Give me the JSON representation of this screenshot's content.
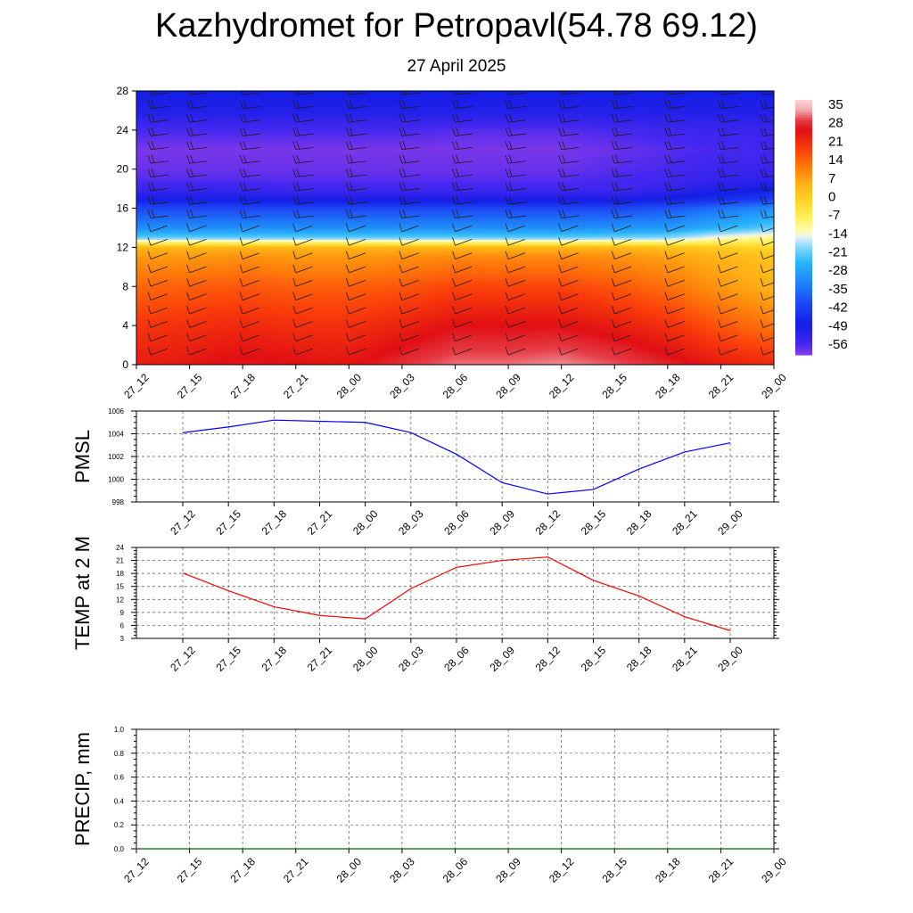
{
  "title": "Kazhydromet for Petropavl(54.78 69.12)",
  "subtitle": "27 April 2025",
  "chart_data": [
    {
      "type": "heatmap",
      "x_ticks": [
        "27_12",
        "27_15",
        "27_18",
        "27_21",
        "28_00",
        "28_03",
        "28_06",
        "28_09",
        "28_12",
        "28_15",
        "28_18",
        "28_21",
        "29_00"
      ],
      "y_ticks": [
        0,
        4,
        8,
        12,
        16,
        20,
        24,
        28
      ],
      "ylim": [
        0,
        28
      ],
      "colorbar": {
        "labels": [
          35,
          28,
          21,
          14,
          7,
          0,
          -7,
          -14,
          -21,
          -28,
          -35,
          -42,
          -49,
          -56
        ],
        "range": [
          -60,
          40
        ]
      },
      "temperature_profile": {
        "levels": [
          0,
          4,
          8,
          11,
          12,
          13,
          14,
          16,
          17,
          18,
          19,
          20,
          22,
          24,
          26,
          28
        ],
        "columns": [
          [
            26,
            22,
            16,
            10,
            6,
            -20,
            -30,
            -40,
            -49,
            -54,
            -57,
            -58,
            -59,
            -56,
            -50,
            -48
          ],
          [
            27,
            23,
            17,
            10,
            6,
            -20,
            -30,
            -40,
            -49,
            -54,
            -57,
            -58,
            -59,
            -56,
            -50,
            -48
          ],
          [
            29,
            24,
            18,
            11,
            6,
            -20,
            -30,
            -40,
            -49,
            -54,
            -57,
            -58,
            -59,
            -56,
            -50,
            -48
          ],
          [
            28,
            23,
            17,
            10,
            6,
            -20,
            -30,
            -40,
            -50,
            -55,
            -57,
            -58,
            -59,
            -56,
            -50,
            -48
          ],
          [
            27,
            23,
            17,
            10,
            6,
            -20,
            -30,
            -40,
            -50,
            -55,
            -57,
            -58,
            -59,
            -56,
            -50,
            -48
          ],
          [
            31,
            25,
            18,
            11,
            6,
            -20,
            -30,
            -40,
            -50,
            -55,
            -57,
            -58,
            -59,
            -56,
            -50,
            -48
          ],
          [
            34,
            28,
            20,
            12,
            6,
            -20,
            -30,
            -40,
            -50,
            -55,
            -57,
            -58,
            -59,
            -57,
            -50,
            -48
          ],
          [
            34,
            28,
            20,
            12,
            6,
            -20,
            -30,
            -40,
            -50,
            -55,
            -57,
            -58,
            -59,
            -57,
            -50,
            -48
          ],
          [
            35,
            28,
            20,
            12,
            6,
            -20,
            -30,
            -40,
            -50,
            -55,
            -57,
            -58,
            -59,
            -57,
            -50,
            -48
          ],
          [
            33,
            26,
            18,
            11,
            6,
            -19,
            -29,
            -40,
            -50,
            -55,
            -56,
            -57,
            -58,
            -56,
            -50,
            -48
          ],
          [
            30,
            23,
            15,
            9,
            4,
            -18,
            -28,
            -38,
            -48,
            -53,
            -55,
            -56,
            -57,
            -55,
            -50,
            -48
          ],
          [
            26,
            18,
            10,
            6,
            2,
            -12,
            -24,
            -34,
            -45,
            -50,
            -53,
            -54,
            -56,
            -54,
            -50,
            -48
          ],
          [
            24,
            14,
            6,
            4,
            0,
            -9,
            -20,
            -30,
            -42,
            -48,
            -52,
            -54,
            -55,
            -54,
            -50,
            -48
          ]
        ]
      }
    },
    {
      "type": "line",
      "ylabel": "PMSL",
      "ylim": [
        998,
        1006
      ],
      "y_ticks": [
        998,
        1000,
        1002,
        1004,
        1006
      ],
      "x": [
        "27_12",
        "27_15",
        "27_18",
        "27_21",
        "28_00",
        "28_03",
        "28_06",
        "28_09",
        "28_12",
        "28_15",
        "28_18",
        "28_21",
        "29_00"
      ],
      "series": [
        {
          "color": "#0000ff",
          "values": [
            1004.1,
            1004.6,
            1005.2,
            1005.1,
            1005.0,
            1004.1,
            1002.2,
            999.7,
            998.7,
            999.1,
            1000.9,
            1002.4,
            1003.2
          ]
        }
      ]
    },
    {
      "type": "line",
      "ylabel": "TEMP at 2 M",
      "ylim": [
        3,
        24
      ],
      "y_ticks": [
        3,
        6,
        9,
        12,
        15,
        18,
        21,
        24
      ],
      "x": [
        "27_12",
        "27_15",
        "27_18",
        "27_21",
        "28_00",
        "28_03",
        "28_06",
        "28_09",
        "28_12",
        "28_15",
        "28_18",
        "28_21",
        "29_00"
      ],
      "series": [
        {
          "color": "#ff0000",
          "values": [
            18.1,
            14.0,
            10.3,
            8.3,
            7.5,
            14.5,
            19.4,
            21.0,
            21.8,
            16.4,
            12.8,
            8.0,
            4.8
          ]
        }
      ]
    },
    {
      "type": "line",
      "ylabel": "PRECIP, mm",
      "ylim": [
        0.0,
        1.0
      ],
      "y_ticks": [
        "0.0",
        "0.2",
        "0.4",
        "0.6",
        "0.8",
        "1.0"
      ],
      "x": [
        "27_12",
        "27_15",
        "27_18",
        "27_21",
        "28_00",
        "28_03",
        "28_06",
        "28_09",
        "28_12",
        "28_15",
        "28_18",
        "28_21",
        "29_00"
      ],
      "series": [
        {
          "color": "#006400",
          "values": [
            0,
            0,
            0,
            0,
            0,
            0,
            0,
            0,
            0,
            0,
            0,
            0,
            0
          ]
        }
      ]
    }
  ]
}
